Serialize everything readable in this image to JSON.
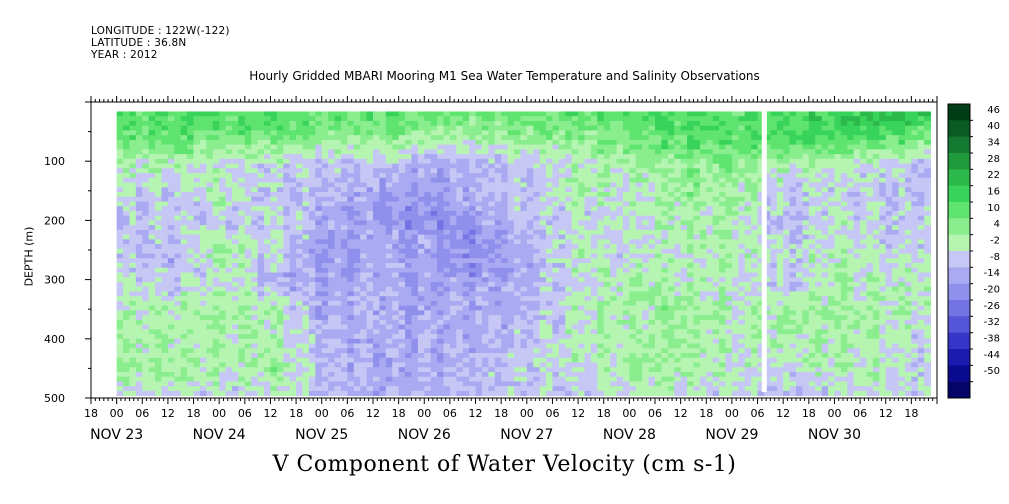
{
  "header": {
    "longitude": "LONGITUDE : 122W(-122)",
    "latitude": "LATITUDE : 36.8N",
    "year": "YEAR : 2012"
  },
  "title": "Hourly Gridded MBARI Mooring M1 Sea Water Temperature and Salinity Observations",
  "bottom_label": "V Component of Water Velocity (cm s-1)",
  "chart_data": {
    "type": "heatmap",
    "variable": "V Component of Water Velocity (cm s-1)",
    "xlabel": "",
    "ylabel": "DEPTH (m)",
    "y_ticks": [
      100,
      200,
      300,
      400,
      500
    ],
    "ylim": [
      500,
      0
    ],
    "hour_tick_labels": [
      "18",
      "00",
      "06",
      "12",
      "18",
      "00",
      "06",
      "12",
      "18",
      "00",
      "06",
      "12",
      "18",
      "00",
      "06",
      "12",
      "18",
      "00",
      "06",
      "12",
      "18",
      "00",
      "06",
      "12",
      "18",
      "00",
      "06",
      "12",
      "18",
      "00",
      "06",
      "12",
      "18"
    ],
    "date_labels": [
      "NOV 23",
      "NOV 24",
      "NOV 25",
      "NOV 26",
      "NOV 27",
      "NOV 28",
      "NOV 29",
      "NOV 30"
    ],
    "colorbar_levels": [
      46,
      40,
      34,
      28,
      22,
      16,
      10,
      4,
      -2,
      -8,
      -14,
      -20,
      -26,
      -32,
      -38,
      -44,
      -50
    ],
    "colorbar_colors": [
      "#003c16",
      "#0a5a24",
      "#147a32",
      "#1f9a3c",
      "#2ab94a",
      "#38d35a",
      "#5ee46f",
      "#8aee8e",
      "#b6f4b2",
      "#c7c7f5",
      "#aaaaf2",
      "#8f8fec",
      "#7373e4",
      "#5555da",
      "#3535c8",
      "#1b1bb0",
      "#0a0a8f",
      "#040466"
    ],
    "colorbar_ticks": [
      "46",
      "40",
      "34",
      "28",
      "22",
      "16",
      "10",
      "4",
      "-2",
      "-8",
      "-14",
      "-20",
      "-26",
      "-32",
      "-38",
      "-44",
      "-50"
    ],
    "x_hour_range": [
      -6,
      192
    ],
    "data_hour_range": [
      0,
      190
    ],
    "data_depth_range": [
      16,
      490
    ],
    "missing_column_hour": 151,
    "field_grid": {
      "hours": [
        0,
        12,
        24,
        36,
        48,
        60,
        72,
        84,
        96,
        108,
        120,
        132,
        144,
        156,
        168,
        180,
        190
      ],
      "depths": [
        20,
        60,
        100,
        150,
        200,
        250,
        300,
        350,
        400,
        450,
        490
      ],
      "values": [
        [
          14,
          16,
          14,
          16,
          12,
          14,
          12,
          10,
          12,
          12,
          14,
          16,
          14,
          16,
          20,
          24,
          20
        ],
        [
          10,
          12,
          8,
          10,
          4,
          6,
          2,
          2,
          6,
          6,
          10,
          14,
          12,
          14,
          16,
          14,
          6
        ],
        [
          2,
          2,
          -4,
          -2,
          -6,
          -4,
          -10,
          -8,
          -4,
          0,
          4,
          6,
          8,
          2,
          0,
          -4,
          -6
        ],
        [
          -4,
          -6,
          2,
          -6,
          -8,
          -12,
          -14,
          -8,
          -4,
          2,
          -2,
          4,
          4,
          -6,
          -4,
          -6,
          -8
        ],
        [
          -8,
          -4,
          -6,
          -2,
          -10,
          -14,
          -16,
          -14,
          -8,
          -4,
          -2,
          2,
          0,
          -8,
          -2,
          -6,
          -4
        ],
        [
          -6,
          -8,
          4,
          -4,
          -14,
          -10,
          -12,
          -18,
          -8,
          2,
          -4,
          0,
          2,
          -4,
          2,
          -4,
          -2
        ],
        [
          -2,
          -6,
          -2,
          -8,
          -12,
          -10,
          -14,
          -12,
          -10,
          -2,
          4,
          2,
          -2,
          -6,
          0,
          0,
          2
        ],
        [
          0,
          2,
          4,
          2,
          -10,
          -8,
          -12,
          -10,
          -8,
          0,
          2,
          6,
          0,
          4,
          4,
          2,
          0
        ],
        [
          4,
          2,
          2,
          0,
          -8,
          -12,
          -8,
          -10,
          -6,
          2,
          2,
          4,
          -2,
          2,
          2,
          -2,
          -4
        ],
        [
          2,
          4,
          0,
          4,
          -6,
          -10,
          -12,
          -8,
          -4,
          -2,
          4,
          2,
          0,
          -4,
          2,
          0,
          -6
        ],
        [
          -4,
          -2,
          -4,
          -2,
          -8,
          -10,
          -8,
          -6,
          -6,
          -4,
          0,
          -2,
          -4,
          -6,
          -4,
          -2,
          -4
        ]
      ]
    }
  }
}
